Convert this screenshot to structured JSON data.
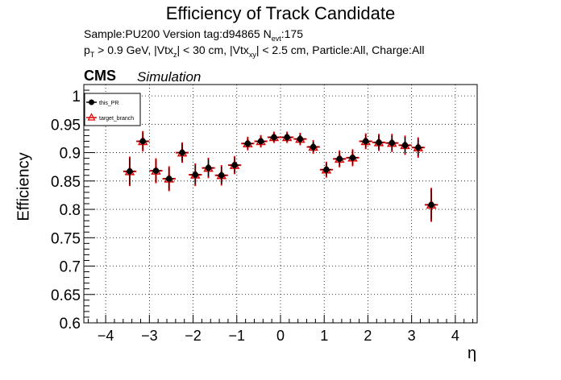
{
  "header": {
    "title": "Efficiency of Track Candidate",
    "line1": {
      "prefix": "Sample:PU200   Version tag:d94865  N",
      "sub": "evt",
      "suffix": ":175"
    },
    "line2": {
      "p": "p",
      "p_sub": "T",
      "t1": " > 0.9 GeV, |Vtx",
      "z_sub": "z",
      "t2": "| < 30 cm, |Vtx",
      "xy_sub": "xy",
      "t3": "| < 2.5 cm, Particle:All, Charge:All"
    },
    "cms": "CMS",
    "simulation": "Simulation"
  },
  "colors": {
    "marker": "#000000",
    "target": "#e00000",
    "axis": "#000000",
    "grid": "#000000"
  },
  "chart_data": {
    "type": "scatter",
    "title": "Efficiency of Track Candidate",
    "xlabel": "η",
    "ylabel": "Efficiency",
    "xlim": [
      -4.5,
      4.5
    ],
    "ylim": [
      0.6,
      1.02
    ],
    "grid": true,
    "legend_position": "top-left",
    "xticks": [
      -4,
      -3,
      -2,
      -1,
      0,
      1,
      2,
      3,
      4
    ],
    "xtick_labels": [
      "−4",
      "−3",
      "−2",
      "−1",
      "0",
      "1",
      "2",
      "3",
      "4"
    ],
    "yticks": [
      0.6,
      0.65,
      0.7,
      0.75,
      0.8,
      0.85,
      0.9,
      0.95,
      1.0
    ],
    "ytick_labels": [
      "0.6",
      "0.65",
      "0.7",
      "0.75",
      "0.8",
      "0.85",
      "0.9",
      "0.95",
      "1"
    ],
    "series": [
      {
        "name": "this_PR",
        "marker": "circle",
        "x": [
          -3.45,
          -3.15,
          -2.85,
          -2.55,
          -2.25,
          -1.95,
          -1.65,
          -1.35,
          -1.05,
          -0.75,
          -0.45,
          -0.15,
          0.15,
          0.45,
          0.75,
          1.05,
          1.35,
          1.65,
          1.95,
          2.25,
          2.55,
          2.85,
          3.15,
          3.45
        ],
        "xerr": 0.15,
        "y": [
          0.867,
          0.92,
          0.868,
          0.854,
          0.9,
          0.861,
          0.873,
          0.86,
          0.878,
          0.916,
          0.92,
          0.927,
          0.927,
          0.924,
          0.91,
          0.87,
          0.889,
          0.891,
          0.92,
          0.918,
          0.917,
          0.913,
          0.909,
          0.808
        ],
        "yerr": [
          0.026,
          0.018,
          0.022,
          0.022,
          0.018,
          0.02,
          0.018,
          0.018,
          0.016,
          0.012,
          0.011,
          0.01,
          0.01,
          0.011,
          0.012,
          0.014,
          0.015,
          0.015,
          0.014,
          0.015,
          0.016,
          0.017,
          0.018,
          0.03
        ]
      },
      {
        "name": "target_branch",
        "marker": "open-triangle",
        "x": [
          -3.45,
          -3.15,
          -2.85,
          -2.55,
          -2.25,
          -1.95,
          -1.65,
          -1.35,
          -1.05,
          -0.75,
          -0.45,
          -0.15,
          0.15,
          0.45,
          0.75,
          1.05,
          1.35,
          1.65,
          1.95,
          2.25,
          2.55,
          2.85,
          3.15,
          3.45
        ],
        "xerr": 0.15,
        "y": [
          0.867,
          0.92,
          0.868,
          0.854,
          0.9,
          0.861,
          0.873,
          0.86,
          0.878,
          0.916,
          0.92,
          0.927,
          0.927,
          0.924,
          0.91,
          0.87,
          0.889,
          0.891,
          0.92,
          0.918,
          0.917,
          0.913,
          0.909,
          0.808
        ],
        "yerr": [
          0.026,
          0.018,
          0.022,
          0.022,
          0.018,
          0.02,
          0.018,
          0.018,
          0.016,
          0.012,
          0.011,
          0.01,
          0.01,
          0.011,
          0.012,
          0.014,
          0.015,
          0.015,
          0.014,
          0.015,
          0.016,
          0.017,
          0.018,
          0.03
        ]
      }
    ]
  }
}
